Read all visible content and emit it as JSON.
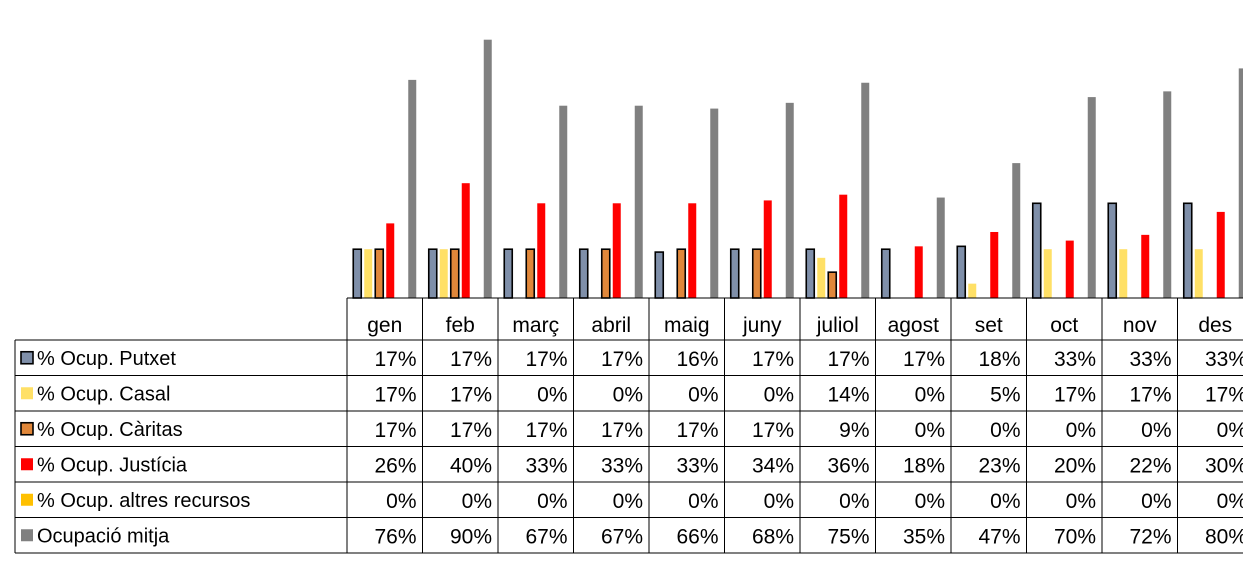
{
  "chart_data": {
    "type": "bar",
    "title": "",
    "xlabel": "",
    "ylabel": "",
    "ylim": [
      0,
      100
    ],
    "grid": false,
    "legend": "left data table",
    "categories": [
      "gen",
      "feb",
      "març",
      "abril",
      "maig",
      "juny",
      "juliol",
      "agost",
      "set",
      "oct",
      "nov",
      "des"
    ],
    "series": [
      {
        "name": "% Ocup. Putxet",
        "color": "#7f8fa9",
        "outline": true,
        "values": [
          17,
          17,
          17,
          17,
          16,
          17,
          17,
          17,
          18,
          33,
          33,
          33
        ],
        "labels": [
          "17%",
          "17%",
          "17%",
          "17%",
          "16%",
          "17%",
          "17%",
          "17%",
          "18%",
          "33%",
          "33%",
          "33%"
        ]
      },
      {
        "name": "% Ocup. Casal",
        "color": "#ffe066",
        "outline": false,
        "values": [
          17,
          17,
          0,
          0,
          0,
          0,
          14,
          0,
          5,
          17,
          17,
          17
        ],
        "labels": [
          "17%",
          "17%",
          "0%",
          "0%",
          "0%",
          "0%",
          "14%",
          "0%",
          "5%",
          "17%",
          "17%",
          "17%"
        ]
      },
      {
        "name": "% Ocup. Càritas",
        "color": "#e0873a",
        "outline": true,
        "values": [
          17,
          17,
          17,
          17,
          17,
          17,
          9,
          0,
          0,
          0,
          0,
          0
        ],
        "labels": [
          "17%",
          "17%",
          "17%",
          "17%",
          "17%",
          "17%",
          "9%",
          "0%",
          "0%",
          "0%",
          "0%",
          "0%"
        ]
      },
      {
        "name": "% Ocup. Justícia",
        "color": "#ff0000",
        "outline": false,
        "values": [
          26,
          40,
          33,
          33,
          33,
          34,
          36,
          18,
          23,
          20,
          22,
          30
        ],
        "labels": [
          "26%",
          "40%",
          "33%",
          "33%",
          "33%",
          "34%",
          "36%",
          "18%",
          "23%",
          "20%",
          "22%",
          "30%"
        ]
      },
      {
        "name": "% Ocup. altres recursos",
        "color": "#ffc000",
        "outline": false,
        "values": [
          0,
          0,
          0,
          0,
          0,
          0,
          0,
          0,
          0,
          0,
          0,
          0
        ],
        "labels": [
          "0%",
          "0%",
          "0%",
          "0%",
          "0%",
          "0%",
          "0%",
          "0%",
          "0%",
          "0%",
          "0%",
          "0%"
        ]
      },
      {
        "name": "Ocupació mitja",
        "color": "#808080",
        "outline": false,
        "values": [
          76,
          90,
          67,
          67,
          66,
          68,
          75,
          35,
          47,
          70,
          72,
          80
        ],
        "labels": [
          "76%",
          "90%",
          "67%",
          "67%",
          "66%",
          "68%",
          "75%",
          "35%",
          "47%",
          "70%",
          "72%",
          "80%"
        ]
      }
    ]
  }
}
